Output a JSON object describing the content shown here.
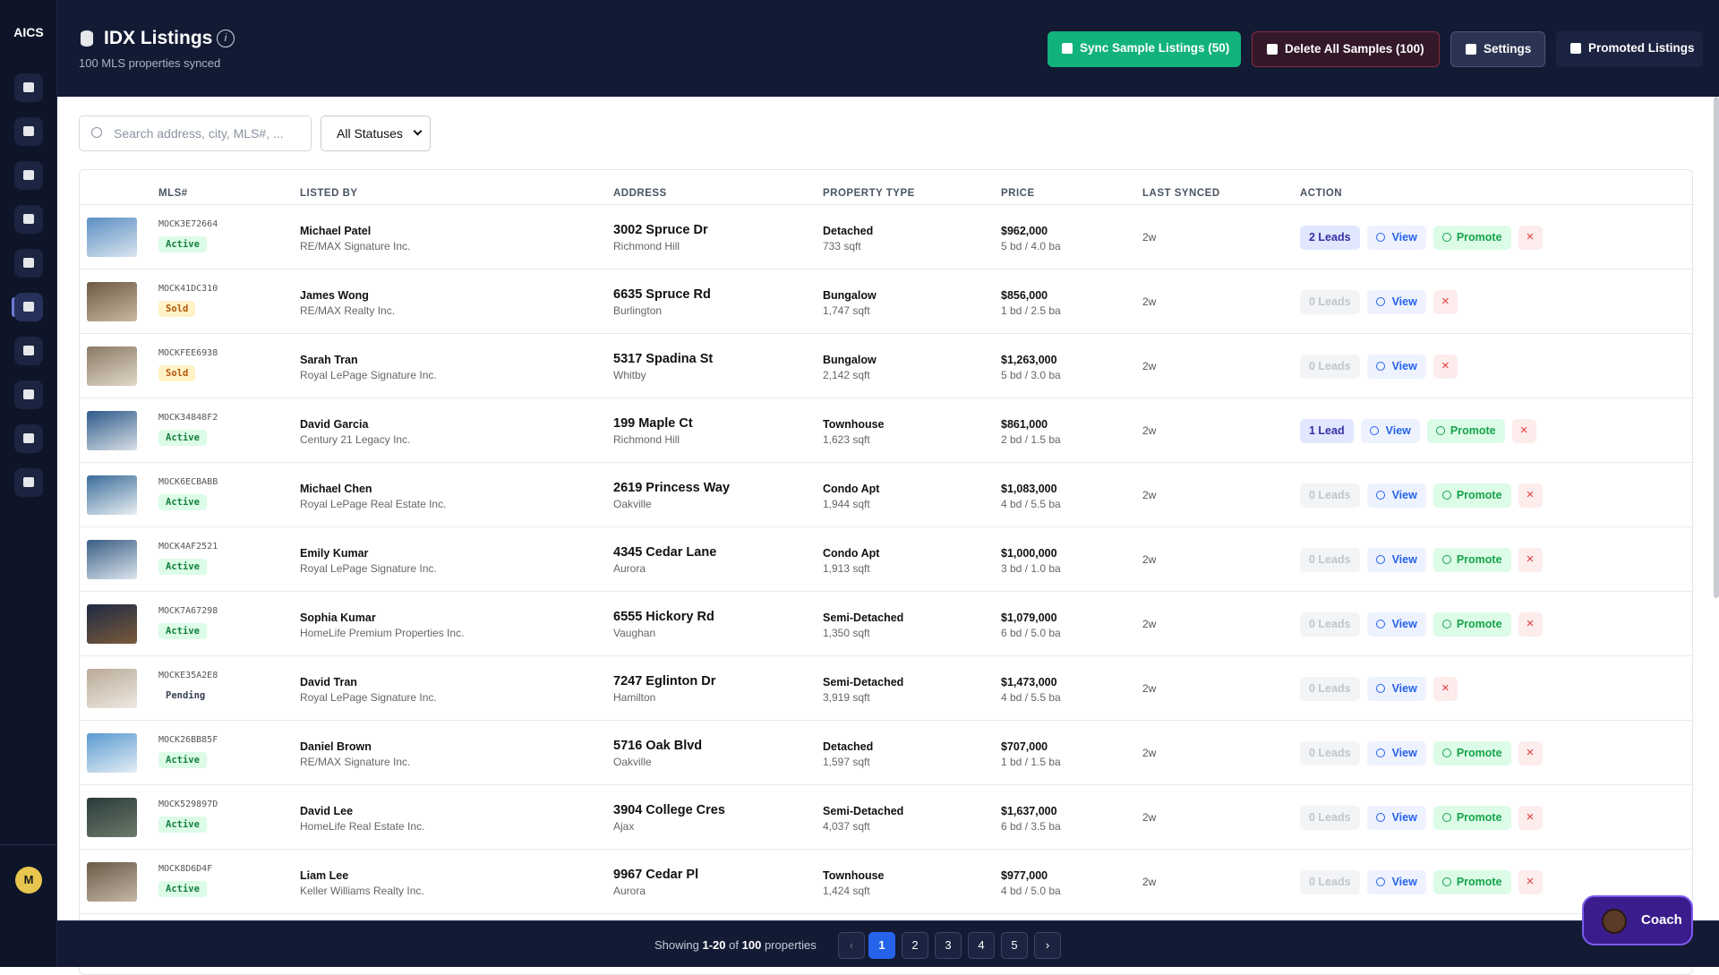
{
  "sidebar": {
    "logo": "AICS",
    "avatar": "M"
  },
  "header": {
    "title": "IDX Listings",
    "subtitle": "100 MLS properties synced",
    "buttons": [
      "Sync Sample Listings (50)",
      "Delete All Samples (100)",
      "Settings",
      "Promoted Listings"
    ]
  },
  "filters": {
    "search_placeholder": "Search address, city, MLS#, ...",
    "status": "All Statuses"
  },
  "table": {
    "columns": [
      "MLS#",
      "LISTED BY",
      "ADDRESS",
      "PROPERTY TYPE",
      "PRICE",
      "LAST SYNCED",
      "ACTION"
    ],
    "rows": [
      {
        "mls": "MOCK3E72664",
        "status": "Active",
        "agent": "Michael Patel",
        "brokerage": "RE/MAX Signature Inc.",
        "address": "3002 Spruce Dr",
        "city": "Richmond Hill",
        "type": "Detached",
        "sqft": "733 sqft",
        "price": "$962,000",
        "rooms": "5 bd / 4.0 ba",
        "synced": "2w",
        "leads": "2 Leads",
        "actions": [
          "View",
          "Promote"
        ]
      },
      {
        "mls": "MOCK41DC310",
        "status": "Sold",
        "agent": "James Wong",
        "brokerage": "RE/MAX Realty Inc.",
        "address": "6635 Spruce Rd",
        "city": "Burlington",
        "type": "Bungalow",
        "sqft": "1,747 sqft",
        "price": "$856,000",
        "rooms": "1 bd / 2.5 ba",
        "synced": "2w",
        "leads": "0 Leads",
        "actions": [
          "View"
        ]
      },
      {
        "mls": "MOCKFEE6938",
        "status": "Sold",
        "agent": "Sarah Tran",
        "brokerage": "Royal LePage Signature Inc.",
        "address": "5317 Spadina St",
        "city": "Whitby",
        "type": "Bungalow",
        "sqft": "2,142 sqft",
        "price": "$1,263,000",
        "rooms": "5 bd / 3.0 ba",
        "synced": "2w",
        "leads": "0 Leads",
        "actions": [
          "View"
        ]
      },
      {
        "mls": "MOCK34848F2",
        "status": "Active",
        "agent": "David Garcia",
        "brokerage": "Century 21 Legacy Inc.",
        "address": "199 Maple Ct",
        "city": "Richmond Hill",
        "type": "Townhouse",
        "sqft": "1,623 sqft",
        "price": "$861,000",
        "rooms": "2 bd / 1.5 ba",
        "synced": "2w",
        "leads": "1 Lead",
        "actions": [
          "View",
          "Promote"
        ]
      },
      {
        "mls": "MOCK6ECBABB",
        "status": "Active",
        "agent": "Michael Chen",
        "brokerage": "Royal LePage Real Estate Inc.",
        "address": "2619 Princess Way",
        "city": "Oakville",
        "type": "Condo Apt",
        "sqft": "1,944 sqft",
        "price": "$1,083,000",
        "rooms": "4 bd / 5.5 ba",
        "synced": "2w",
        "leads": "0 Leads",
        "actions": [
          "View",
          "Promote"
        ]
      },
      {
        "mls": "MOCK4AF2521",
        "status": "Active",
        "agent": "Emily Kumar",
        "brokerage": "Royal LePage Signature Inc.",
        "address": "4345 Cedar Lane",
        "city": "Aurora",
        "type": "Condo Apt",
        "sqft": "1,913 sqft",
        "price": "$1,000,000",
        "rooms": "3 bd / 1.0 ba",
        "synced": "2w",
        "leads": "0 Leads",
        "actions": [
          "View",
          "Promote"
        ]
      },
      {
        "mls": "MOCK7A67298",
        "status": "Active",
        "agent": "Sophia Kumar",
        "brokerage": "HomeLife Premium Properties Inc.",
        "address": "6555 Hickory Rd",
        "city": "Vaughan",
        "type": "Semi-Detached",
        "sqft": "1,350 sqft",
        "price": "$1,079,000",
        "rooms": "6 bd / 5.0 ba",
        "synced": "2w",
        "leads": "0 Leads",
        "actions": [
          "View",
          "Promote"
        ]
      },
      {
        "mls": "MOCKE35A2E8",
        "status": "Pending",
        "agent": "David Tran",
        "brokerage": "Royal LePage Signature Inc.",
        "address": "7247 Eglinton Dr",
        "city": "Hamilton",
        "type": "Semi-Detached",
        "sqft": "3,919 sqft",
        "price": "$1,473,000",
        "rooms": "4 bd / 5.5 ba",
        "synced": "2w",
        "leads": "0 Leads",
        "actions": [
          "View"
        ]
      },
      {
        "mls": "MOCK26BB85F",
        "status": "Active",
        "agent": "Daniel Brown",
        "brokerage": "RE/MAX Signature Inc.",
        "address": "5716 Oak Blvd",
        "city": "Oakville",
        "type": "Detached",
        "sqft": "1,597 sqft",
        "price": "$707,000",
        "rooms": "1 bd / 1.5 ba",
        "synced": "2w",
        "leads": "0 Leads",
        "actions": [
          "View",
          "Promote"
        ]
      },
      {
        "mls": "MOCK529897D",
        "status": "Active",
        "agent": "David Lee",
        "brokerage": "HomeLife Real Estate Inc.",
        "address": "3904 College Cres",
        "city": "Ajax",
        "type": "Semi-Detached",
        "sqft": "4,037 sqft",
        "price": "$1,637,000",
        "rooms": "6 bd / 3.5 ba",
        "synced": "2w",
        "leads": "0 Leads",
        "actions": [
          "View",
          "Promote"
        ]
      },
      {
        "mls": "MOCK8D6D4F",
        "status": "Active",
        "agent": "Liam Lee",
        "brokerage": "Keller Williams Realty Inc.",
        "address": "9967 Cedar Pl",
        "city": "Aurora",
        "type": "Townhouse",
        "sqft": "1,424 sqft",
        "price": "$977,000",
        "rooms": "4 bd / 5.0 ba",
        "synced": "2w",
        "leads": "0 Leads",
        "actions": [
          "View",
          "Promote"
        ]
      }
    ]
  },
  "pagination": {
    "text": [
      "Showing",
      "1-20",
      "of",
      "100",
      "properties"
    ],
    "pages": [
      "1",
      "2",
      "3",
      "4",
      "5"
    ],
    "prev": "‹",
    "next": "›"
  },
  "coach": "Coach"
}
